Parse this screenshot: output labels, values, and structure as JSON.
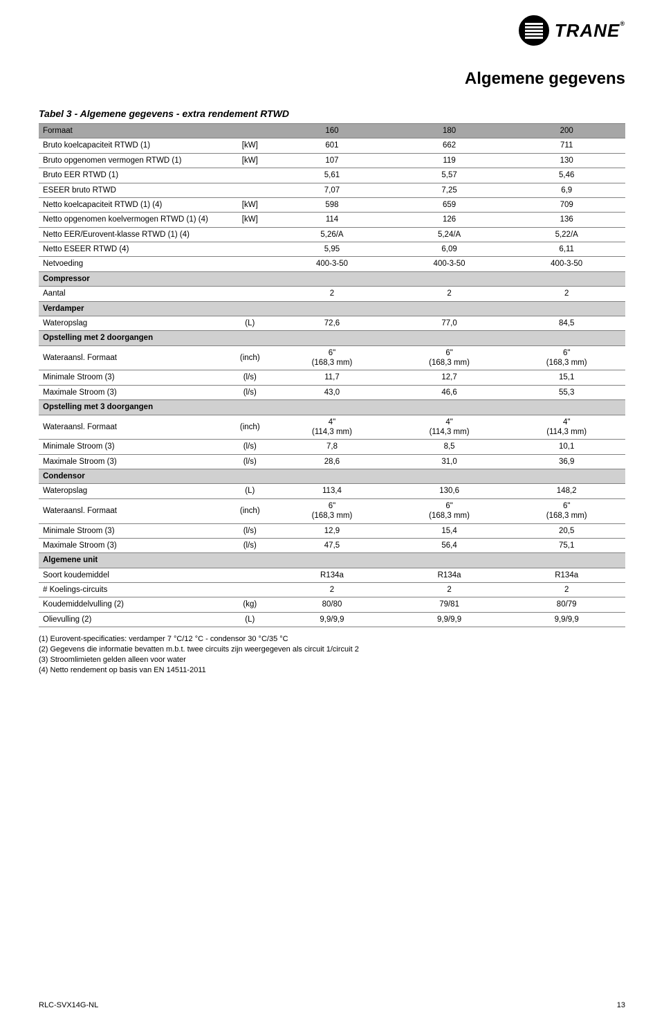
{
  "brand": {
    "name": "TRANE",
    "registered": "®",
    "logo_bg": "#000000",
    "logo_fg": "#ffffff"
  },
  "page_title": "Algemene gegevens",
  "table_caption": "Tabel 3 - Algemene gegevens - extra rendement RTWD",
  "columns": {
    "label_width_pct": 32,
    "unit_width_pct": 8,
    "val_width_pct": 20
  },
  "colors": {
    "header_bg": "#a6a6a6",
    "section_bg": "#d0d0d0",
    "border": "#808080",
    "text": "#000000"
  },
  "table": [
    {
      "type": "header",
      "label": "Formaat",
      "unit": "",
      "vals": [
        "160",
        "180",
        "200"
      ]
    },
    {
      "type": "data",
      "label": "Bruto koelcapaciteit RTWD (1)",
      "unit": "[kW]",
      "vals": [
        "601",
        "662",
        "711"
      ]
    },
    {
      "type": "data",
      "label": "Bruto opgenomen vermogen RTWD (1)",
      "unit": "[kW]",
      "vals": [
        "107",
        "119",
        "130"
      ]
    },
    {
      "type": "data",
      "label": "Bruto EER RTWD (1)",
      "unit": "",
      "vals": [
        "5,61",
        "5,57",
        "5,46"
      ]
    },
    {
      "type": "data",
      "label": "ESEER bruto RTWD",
      "unit": "",
      "vals": [
        "7,07",
        "7,25",
        "6,9"
      ]
    },
    {
      "type": "data",
      "label": "Netto koelcapaciteit RTWD (1) (4)",
      "unit": "[kW]",
      "vals": [
        "598",
        "659",
        "709"
      ]
    },
    {
      "type": "data",
      "label": "Netto opgenomen koelvermogen RTWD (1) (4)",
      "unit": "[kW]",
      "vals": [
        "114",
        "126",
        "136"
      ]
    },
    {
      "type": "data",
      "label": "Netto EER/Eurovent-klasse RTWD (1) (4)",
      "unit": "",
      "vals": [
        "5,26/A",
        "5,24/A",
        "5,22/A"
      ]
    },
    {
      "type": "data",
      "label": "Netto ESEER RTWD (4)",
      "unit": "",
      "vals": [
        "5,95",
        "6,09",
        "6,11"
      ]
    },
    {
      "type": "data",
      "label": "Netvoeding",
      "unit": "",
      "vals": [
        "400-3-50",
        "400-3-50",
        "400-3-50"
      ]
    },
    {
      "type": "section",
      "label": "Compressor"
    },
    {
      "type": "data",
      "label": "Aantal",
      "unit": "",
      "vals": [
        "2",
        "2",
        "2"
      ]
    },
    {
      "type": "section",
      "label": "Verdamper"
    },
    {
      "type": "data",
      "label": "Wateropslag",
      "unit": "(L)",
      "vals": [
        "72,6",
        "77,0",
        "84,5"
      ]
    },
    {
      "type": "section",
      "label": "Opstelling met 2 doorgangen"
    },
    {
      "type": "data",
      "label": "Wateraansl. Formaat",
      "unit": "(inch)",
      "vals": [
        "6\"\n(168,3 mm)",
        "6\"\n(168,3 mm)",
        "6\"\n(168,3 mm)"
      ]
    },
    {
      "type": "data",
      "label": "Minimale Stroom (3)",
      "unit": "(l/s)",
      "vals": [
        "11,7",
        "12,7",
        "15,1"
      ]
    },
    {
      "type": "data",
      "label": "Maximale Stroom (3)",
      "unit": "(l/s)",
      "vals": [
        "43,0",
        "46,6",
        "55,3"
      ]
    },
    {
      "type": "section",
      "label": "Opstelling met 3 doorgangen"
    },
    {
      "type": "data",
      "label": "Wateraansl. Formaat",
      "unit": "(inch)",
      "vals": [
        "4\"\n(114,3 mm)",
        "4\"\n(114,3 mm)",
        "4\"\n(114,3 mm)"
      ]
    },
    {
      "type": "data",
      "label": "Minimale Stroom (3)",
      "unit": "(l/s)",
      "vals": [
        "7,8",
        "8,5",
        "10,1"
      ]
    },
    {
      "type": "data",
      "label": "Maximale Stroom (3)",
      "unit": "(l/s)",
      "vals": [
        "28,6",
        "31,0",
        "36,9"
      ]
    },
    {
      "type": "section",
      "label": "Condensor"
    },
    {
      "type": "data",
      "label": "Wateropslag",
      "unit": "(L)",
      "vals": [
        "113,4",
        "130,6",
        "148,2"
      ]
    },
    {
      "type": "data",
      "label": "Wateraansl. Formaat",
      "unit": "(inch)",
      "vals": [
        "6\"\n(168,3 mm)",
        "6\"\n(168,3 mm)",
        "6\"\n(168,3 mm)"
      ]
    },
    {
      "type": "data",
      "label": "Minimale Stroom (3)",
      "unit": "(l/s)",
      "vals": [
        "12,9",
        "15,4",
        "20,5"
      ]
    },
    {
      "type": "data",
      "label": "Maximale Stroom (3)",
      "unit": "(l/s)",
      "vals": [
        "47,5",
        "56,4",
        "75,1"
      ]
    },
    {
      "type": "section",
      "label": "Algemene unit"
    },
    {
      "type": "data",
      "label": "Soort koudemiddel",
      "unit": "",
      "vals": [
        "R134a",
        "R134a",
        "R134a"
      ]
    },
    {
      "type": "data",
      "label": "# Koelings-circuits",
      "unit": "",
      "vals": [
        "2",
        "2",
        "2"
      ]
    },
    {
      "type": "data",
      "label": "Koudemiddelvulling (2)",
      "unit": "(kg)",
      "vals": [
        "80/80",
        "79/81",
        "80/79"
      ]
    },
    {
      "type": "data",
      "label": "Olievulling (2)",
      "unit": "(L)",
      "vals": [
        "9,9/9,9",
        "9,9/9,9",
        "9,9/9,9"
      ]
    }
  ],
  "notes": [
    "(1) Eurovent-specificaties: verdamper 7 °C/12 °C - condensor 30 °C/35 °C",
    "(2) Gegevens die informatie bevatten m.b.t. twee circuits zijn weergegeven als circuit 1/circuit 2",
    "(3) Stroomlimieten gelden alleen voor water",
    "(4) Netto rendement op basis van EN 14511-2011"
  ],
  "footer": {
    "doc_id": "RLC-SVX14G-NL",
    "page_num": "13"
  }
}
